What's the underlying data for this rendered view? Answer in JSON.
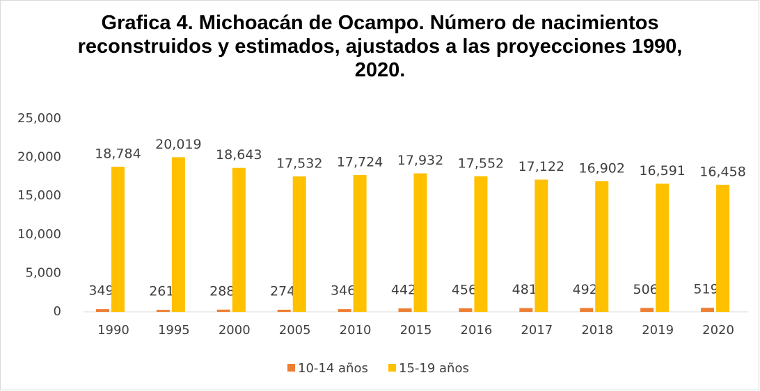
{
  "chart_data": {
    "type": "bar",
    "title": "Grafica 4. Michoacán de Ocampo. Número de nacimientos reconstruidos y estimados, ajustados a las proyecciones 1990, 2020.",
    "categories": [
      "1990",
      "1995",
      "2000",
      "2005",
      "2010",
      "2015",
      "2016",
      "2017",
      "2018",
      "2019",
      "2020"
    ],
    "series": [
      {
        "name": "10-14 años",
        "color": "#ED7D31",
        "values": [
          349,
          261,
          288,
          274,
          346,
          442,
          456,
          481,
          492,
          506,
          519
        ]
      },
      {
        "name": "15-19 años",
        "color": "#FFC000",
        "values": [
          18784,
          20019,
          18643,
          17532,
          17724,
          17932,
          17552,
          17122,
          16902,
          16591,
          16458
        ],
        "value_labels": [
          "18,784",
          "20,019",
          "18,643",
          "17,532",
          "17,724",
          "17,932",
          "17,552",
          "17,122",
          "16,902",
          "16,591",
          "16,458"
        ]
      }
    ],
    "ylim": [
      0,
      25000
    ],
    "yticks": [
      0,
      {
        "value": 5000,
        "label": "5,000"
      },
      {
        "value": 10000,
        "label": "10,000"
      },
      {
        "value": 15000,
        "label": "15,000"
      },
      {
        "value": 20000,
        "label": "20,000"
      },
      {
        "value": 25000,
        "label": "25,000"
      }
    ],
    "grid": false,
    "legend": "bottom"
  }
}
